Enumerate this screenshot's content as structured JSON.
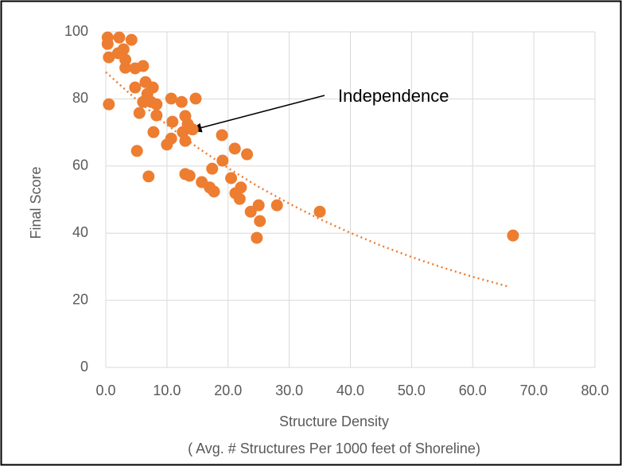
{
  "chart_data": {
    "type": "scatter",
    "x_label": [
      "Structure Density",
      "( Avg. # Structures Per 1000 feet of Shoreline)"
    ],
    "y_label": "Final Score",
    "annotation": "Independence",
    "color": "#ed7d31",
    "x": [
      0.3,
      0.3,
      2.2,
      4.2,
      0.5,
      2.0,
      2.9,
      3.2,
      3.2,
      4.8,
      6.1,
      0.5,
      4.8,
      6.5,
      7.7,
      6.8,
      6.1,
      7.4,
      8.3,
      5.5,
      8.3,
      7.8,
      10.7,
      12.4,
      14.7,
      10.9,
      13.0,
      13.4,
      12.6,
      14.2,
      13.0,
      10.7,
      10.0,
      5.1,
      7.0,
      13.0,
      13.7,
      15.7,
      17.0,
      17.7,
      19.0,
      21.1,
      23.1,
      19.1,
      17.4,
      20.5,
      22.1,
      21.2,
      21.9,
      23.7,
      25.0,
      25.2,
      24.7,
      28.0,
      35.0,
      66.6
    ],
    "values": [
      98.3,
      96.4,
      98.3,
      97.6,
      92.4,
      93.6,
      94.8,
      91.7,
      89.3,
      89.1,
      89.8,
      78.4,
      83.4,
      85.0,
      83.4,
      81.5,
      79.1,
      79.1,
      78.4,
      75.8,
      75.1,
      70.1,
      80.1,
      79.1,
      80.1,
      73.2,
      74.9,
      72.5,
      70.1,
      70.9,
      67.5,
      68.2,
      66.4,
      64.5,
      56.9,
      57.6,
      57.1,
      55.2,
      53.6,
      52.4,
      69.2,
      65.2,
      63.5,
      61.6,
      59.2,
      56.4,
      53.6,
      51.9,
      50.2,
      46.4,
      48.3,
      43.6,
      38.6,
      48.3,
      46.4,
      39.3
    ],
    "trendline": {
      "x": [
        0,
        5,
        10,
        15,
        20,
        25,
        30,
        35,
        40,
        45,
        50,
        55,
        60,
        66
      ],
      "values": [
        88,
        79.8,
        72.3,
        65.5,
        59.4,
        53.8,
        48.8,
        44.2,
        40.1,
        36.3,
        32.9,
        29.8,
        27.0,
        24.0
      ]
    },
    "xlim": [
      0,
      80
    ],
    "xticks": [
      {
        "value": 0,
        "label": "0.0"
      },
      {
        "value": 10,
        "label": "10.0"
      },
      {
        "value": 20,
        "label": "20.0"
      },
      {
        "value": 30,
        "label": "30.0"
      },
      {
        "value": 40,
        "label": "40.0"
      },
      {
        "value": 50,
        "label": "50.0"
      },
      {
        "value": 60,
        "label": "60.0"
      },
      {
        "value": 70,
        "label": "70.0"
      },
      {
        "value": 80,
        "label": "80.0"
      }
    ],
    "ylim": [
      0,
      100
    ],
    "yticks": [
      0,
      20,
      40,
      60,
      80,
      100
    ],
    "grid": true
  }
}
